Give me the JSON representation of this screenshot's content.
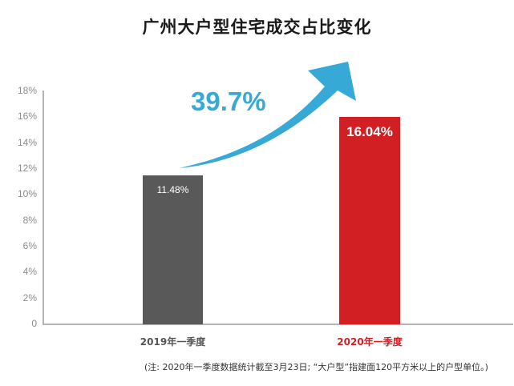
{
  "title": "广州大户型住宅成交占比变化",
  "chart_data": {
    "type": "bar",
    "title": "广州大户型住宅成交占比变化",
    "categories": [
      "2019年一季度",
      "2020年一季度"
    ],
    "values": [
      11.48,
      16.04
    ],
    "value_labels": [
      "11.48%",
      "16.04%"
    ],
    "bar_colors": [
      "#595959",
      "#d21f23"
    ],
    "xlabel": "",
    "ylabel": "",
    "ylim": [
      0,
      18
    ],
    "yticks": [
      "0",
      "2%",
      "4%",
      "6%",
      "8%",
      "10%",
      "12%",
      "14%",
      "16%",
      "18%"
    ],
    "grid": false,
    "annotation": {
      "text": "39.7%",
      "color": "#36a9d6",
      "type": "growth-arrow"
    },
    "note": "(注: 2020年一季度数据统计截至3月23日; “大户型”指建面120平方米以上的户型单位。)"
  },
  "colors": {
    "gray_bar": "#595959",
    "red_bar": "#d21f23",
    "arrow": "#36a9d6",
    "axis": "#b4b4b4",
    "tick_text": "#8c8c8c",
    "label_2019": "#555555",
    "label_2020": "#d21f23"
  }
}
